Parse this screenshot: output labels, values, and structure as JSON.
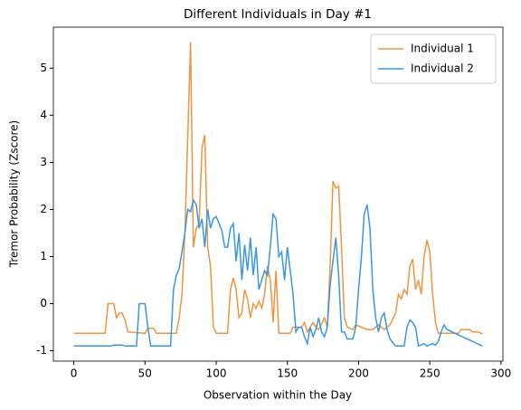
{
  "chart_data": {
    "type": "line",
    "title": "Different Individuals in Day #1",
    "xlabel": "Observation within the Day",
    "ylabel": "Tremor Probability (Zscore)",
    "legend": "upper right",
    "xlim": [
      -14.35,
      301.35
    ],
    "ylim": [
      -1.22,
      5.87
    ],
    "xticks": [
      0,
      50,
      100,
      150,
      200,
      250,
      300
    ],
    "yticks": [
      -1,
      0,
      1,
      2,
      3,
      4,
      5
    ],
    "series": [
      {
        "name": "Individual 1",
        "color": "#f0953f",
        "x": [
          0,
          22,
          24,
          28,
          30,
          32,
          34,
          36,
          38,
          50,
          52,
          56,
          58,
          72,
          74,
          76,
          78,
          80,
          82,
          84,
          86,
          88,
          90,
          92,
          94,
          96,
          98,
          100,
          108,
          110,
          112,
          114,
          116,
          118,
          120,
          122,
          124,
          126,
          128,
          130,
          132,
          134,
          136,
          138,
          140,
          142,
          144,
          152,
          154,
          160,
          162,
          164,
          168,
          170,
          172,
          176,
          178,
          180,
          182,
          184,
          186,
          188,
          190,
          192,
          196,
          198,
          202,
          206,
          210,
          214,
          218,
          222,
          226,
          228,
          230,
          232,
          234,
          236,
          238,
          240,
          242,
          244,
          246,
          248,
          250,
          252,
          254,
          256,
          270,
          272,
          278,
          280,
          284,
          287
        ],
        "values": [
          -0.63,
          -0.63,
          0.0,
          0.0,
          -0.3,
          -0.2,
          -0.2,
          -0.35,
          -0.6,
          -0.63,
          -0.52,
          -0.52,
          -0.63,
          -0.63,
          -0.3,
          0.2,
          1.5,
          3.5,
          5.55,
          1.2,
          1.6,
          1.7,
          3.3,
          3.58,
          1.2,
          0.8,
          -0.5,
          -0.63,
          -0.63,
          0.3,
          0.55,
          0.3,
          -0.3,
          -0.2,
          0.3,
          0.1,
          -0.3,
          0.0,
          -0.1,
          0.05,
          -0.1,
          0.2,
          0.8,
          0.5,
          -0.4,
          0.7,
          -0.63,
          -0.63,
          -0.5,
          -0.5,
          -0.4,
          -0.6,
          -0.4,
          -0.5,
          -0.55,
          -0.3,
          -0.5,
          0.8,
          2.6,
          2.45,
          2.5,
          1.2,
          -0.3,
          -0.5,
          -0.55,
          -0.45,
          -0.5,
          -0.55,
          -0.55,
          -0.45,
          -0.55,
          -0.45,
          -0.2,
          0.2,
          0.1,
          0.3,
          0.2,
          0.8,
          0.95,
          0.3,
          0.5,
          0.2,
          1.0,
          1.35,
          1.1,
          0.2,
          -0.4,
          -0.63,
          -0.63,
          -0.55,
          -0.55,
          -0.6,
          -0.6,
          -0.65
        ]
      },
      {
        "name": "Individual 2",
        "color": "#3a97e4",
        "x": [
          0,
          26,
          28,
          34,
          36,
          44,
          46,
          50,
          52,
          54,
          68,
          70,
          72,
          74,
          76,
          78,
          80,
          82,
          84,
          86,
          88,
          90,
          92,
          94,
          96,
          98,
          100,
          102,
          104,
          106,
          108,
          110,
          112,
          114,
          116,
          118,
          120,
          122,
          124,
          126,
          128,
          130,
          132,
          134,
          136,
          138,
          140,
          142,
          144,
          146,
          148,
          150,
          152,
          154,
          156,
          158,
          160,
          162,
          164,
          166,
          168,
          170,
          172,
          174,
          176,
          178,
          180,
          182,
          184,
          186,
          188,
          190,
          192,
          196,
          198,
          200,
          202,
          204,
          206,
          208,
          210,
          212,
          214,
          216,
          218,
          220,
          222,
          226,
          232,
          234,
          236,
          238,
          240,
          242,
          246,
          248,
          252,
          254,
          256,
          258,
          260,
          262,
          287
        ],
        "values": [
          -0.9,
          -0.9,
          -0.88,
          -0.88,
          -0.9,
          -0.9,
          0.0,
          0.0,
          -0.5,
          -0.9,
          -0.9,
          0.3,
          0.6,
          0.75,
          1.1,
          1.5,
          2.0,
          1.95,
          2.2,
          2.1,
          1.6,
          1.8,
          1.2,
          2.0,
          1.6,
          1.8,
          1.85,
          1.7,
          1.55,
          1.2,
          1.2,
          1.6,
          1.7,
          0.9,
          1.5,
          0.5,
          1.25,
          0.7,
          1.4,
          0.6,
          1.2,
          0.3,
          0.5,
          0.7,
          0.6,
          1.2,
          1.9,
          1.8,
          1.0,
          1.1,
          0.5,
          1.2,
          0.7,
          0.2,
          -0.6,
          -0.5,
          -0.5,
          -0.7,
          -0.85,
          -0.5,
          -0.7,
          -0.55,
          -0.3,
          -0.6,
          -0.7,
          -0.5,
          0.4,
          0.9,
          1.4,
          0.6,
          -0.6,
          -0.6,
          -0.75,
          -0.75,
          -0.5,
          0.3,
          1.0,
          1.9,
          2.1,
          1.6,
          0.3,
          -0.3,
          -0.6,
          -0.3,
          -0.2,
          -0.55,
          -0.75,
          -0.9,
          -0.9,
          -0.5,
          -0.35,
          -0.4,
          -0.5,
          -0.9,
          -0.85,
          -0.9,
          -0.85,
          -0.88,
          -0.8,
          -0.6,
          -0.45,
          -0.55,
          -0.9
        ]
      }
    ]
  }
}
